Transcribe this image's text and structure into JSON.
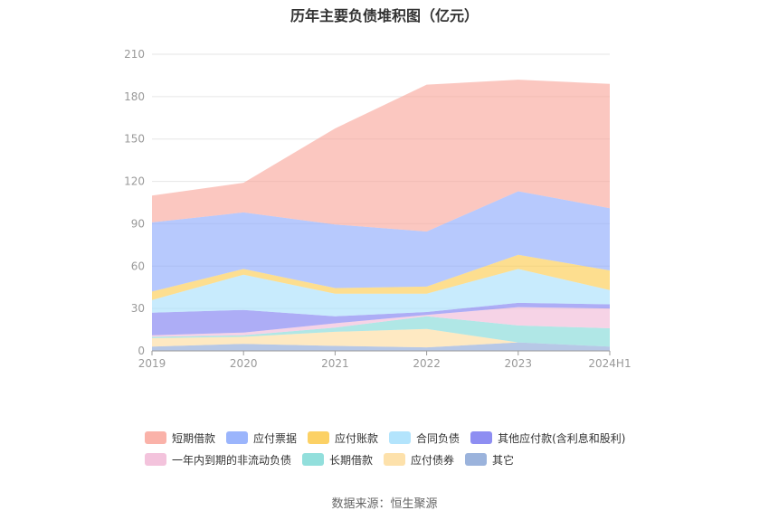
{
  "title": "历年主要负债堆积图（亿元）",
  "source": "数据来源：恒生聚源",
  "chart_data": {
    "type": "area",
    "stacked": true,
    "categories": [
      "2019",
      "2020",
      "2021",
      "2022",
      "2023",
      "2024H1"
    ],
    "ylim": [
      0,
      210
    ],
    "yticks": [
      0,
      30,
      60,
      90,
      120,
      150,
      180,
      210
    ],
    "grid": true,
    "legend_position": "bottom",
    "series": [
      {
        "name": "其它",
        "color": "#8aa6d6",
        "values": [
          3,
          5,
          3.5,
          2.5,
          6,
          3
        ]
      },
      {
        "name": "应付债券",
        "color": "#fddc9c",
        "values": [
          6,
          5,
          10,
          13,
          0,
          0
        ]
      },
      {
        "name": "长期借款",
        "color": "#7fd9d6",
        "values": [
          1,
          1,
          3,
          9,
          12,
          13
        ]
      },
      {
        "name": "一年内到期的非流动负债",
        "color": "#f1b8d6",
        "values": [
          1,
          2,
          3,
          1,
          13,
          14
        ]
      },
      {
        "name": "其他应付款(含利息和股利)",
        "color": "#7a7af0",
        "values": [
          16,
          16,
          5,
          2,
          3,
          3
        ]
      },
      {
        "name": "合同负债",
        "color": "#a6dffc",
        "values": [
          9,
          25,
          16,
          13,
          24,
          10
        ]
      },
      {
        "name": "应付账款",
        "color": "#fcc94a",
        "values": [
          6,
          4,
          4,
          5,
          10,
          14
        ]
      },
      {
        "name": "应付票据",
        "color": "#8aa8fb",
        "values": [
          49,
          40,
          45,
          39,
          45,
          44
        ]
      },
      {
        "name": "短期借款",
        "color": "#f9a49a",
        "values": [
          19,
          21,
          68,
          104,
          79,
          88
        ]
      }
    ]
  },
  "legend_rows": [
    [
      "短期借款",
      "应付票据",
      "应付账款",
      "合同负债",
      "其他应付款(含利息和股利)"
    ],
    [
      "一年内到期的非流动负债",
      "长期借款",
      "应付债券",
      "其它"
    ]
  ]
}
